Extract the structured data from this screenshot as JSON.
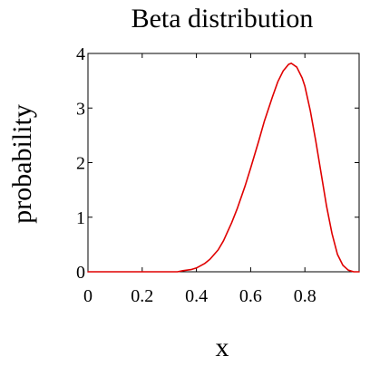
{
  "chart_data": {
    "type": "line",
    "title": "Beta distribution",
    "xlabel": "x",
    "ylabel": "probability",
    "xlim": [
      0,
      1
    ],
    "ylim": [
      0,
      4
    ],
    "x_ticks": [
      0,
      0.2,
      0.4,
      0.6,
      0.8
    ],
    "x_tick_labels": [
      "0",
      "0.2",
      "0.4",
      "0.6",
      "0.8"
    ],
    "y_ticks": [
      0,
      1,
      2,
      3,
      4
    ],
    "y_tick_labels": [
      "0",
      "1",
      "2",
      "3",
      "4"
    ],
    "grid": false,
    "series": [
      {
        "color": "#e00000",
        "x": [
          0.0,
          0.05,
          0.1,
          0.15,
          0.2,
          0.25,
          0.3,
          0.33,
          0.35,
          0.38,
          0.4,
          0.43,
          0.45,
          0.48,
          0.5,
          0.53,
          0.55,
          0.58,
          0.6,
          0.63,
          0.65,
          0.68,
          0.7,
          0.72,
          0.74,
          0.75,
          0.77,
          0.79,
          0.8,
          0.82,
          0.84,
          0.86,
          0.88,
          0.9,
          0.92,
          0.94,
          0.96,
          0.98,
          1.0
        ],
        "y": [
          0,
          0,
          0,
          0,
          0,
          0,
          0,
          0,
          0.02,
          0.04,
          0.07,
          0.15,
          0.23,
          0.4,
          0.57,
          0.9,
          1.15,
          1.58,
          1.9,
          2.4,
          2.75,
          3.2,
          3.48,
          3.68,
          3.8,
          3.82,
          3.75,
          3.55,
          3.4,
          2.95,
          2.4,
          1.8,
          1.2,
          0.7,
          0.32,
          0.12,
          0.03,
          0.0,
          0
        ]
      }
    ]
  }
}
